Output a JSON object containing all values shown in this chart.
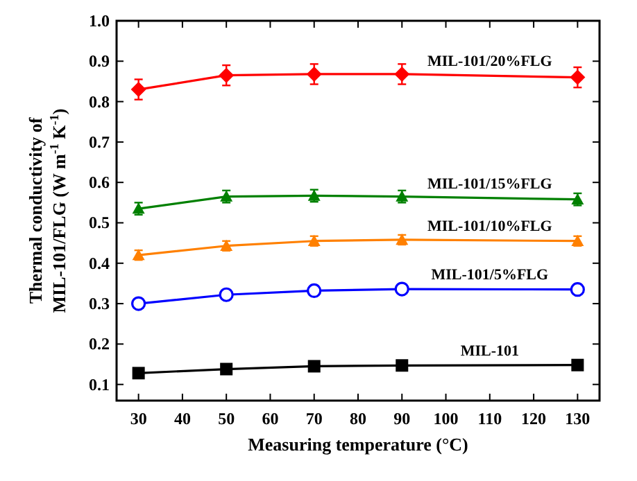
{
  "chart_data": {
    "type": "line",
    "xlabel": "Measuring temperature (°C)",
    "ylabel": "Thermal conductivity of\nMIL-101/FLG (W m$^{-1}$ K$^{-1}$)",
    "x": [
      30,
      50,
      70,
      90,
      130
    ],
    "series": [
      {
        "name": "MIL-101/20%FLG",
        "color": "#ff0000",
        "marker": "diamond",
        "values": [
          0.83,
          0.865,
          0.868,
          0.868,
          0.86
        ],
        "errors": [
          0.025,
          0.025,
          0.025,
          0.025,
          0.025
        ]
      },
      {
        "name": "MIL-101/15%FLG",
        "color": "#008000",
        "marker": "triangle",
        "values": [
          0.535,
          0.565,
          0.567,
          0.565,
          0.558
        ],
        "errors": [
          0.015,
          0.015,
          0.015,
          0.015,
          0.015
        ]
      },
      {
        "name": "MIL-101/10%FLG",
        "color": "#ff8000",
        "marker": "triangle",
        "values": [
          0.42,
          0.443,
          0.455,
          0.458,
          0.455
        ],
        "errors": [
          0.012,
          0.012,
          0.012,
          0.012,
          0.012
        ]
      },
      {
        "name": "MIL-101/5%FLG",
        "color": "#0000ff",
        "marker": "circle",
        "values": [
          0.3,
          0.322,
          0.332,
          0.336,
          0.335
        ]
      },
      {
        "name": "MIL-101",
        "color": "#000000",
        "marker": "square",
        "values": [
          0.128,
          0.138,
          0.145,
          0.147,
          0.148
        ]
      }
    ],
    "xlim": [
      25,
      135
    ],
    "xticks": [
      30,
      40,
      50,
      60,
      70,
      80,
      90,
      100,
      110,
      120,
      130
    ],
    "ylim": [
      0.06,
      1.0
    ],
    "yticks": [
      {
        "value": 0.1,
        "label": "0.1"
      },
      {
        "value": 0.2,
        "label": "0.2"
      },
      {
        "value": 0.3,
        "label": "0.3"
      },
      {
        "value": 0.4,
        "label": "0.4"
      },
      {
        "value": 0.5,
        "label": "0.5"
      },
      {
        "value": 0.6,
        "label": "0.6"
      },
      {
        "value": 0.7,
        "label": "0.7"
      },
      {
        "value": 0.8,
        "label": "0.8"
      },
      {
        "value": 0.9,
        "label": "0.9"
      },
      {
        "value": 1.0,
        "label": "1.0"
      }
    ],
    "grid": false,
    "line_style": "solid"
  }
}
